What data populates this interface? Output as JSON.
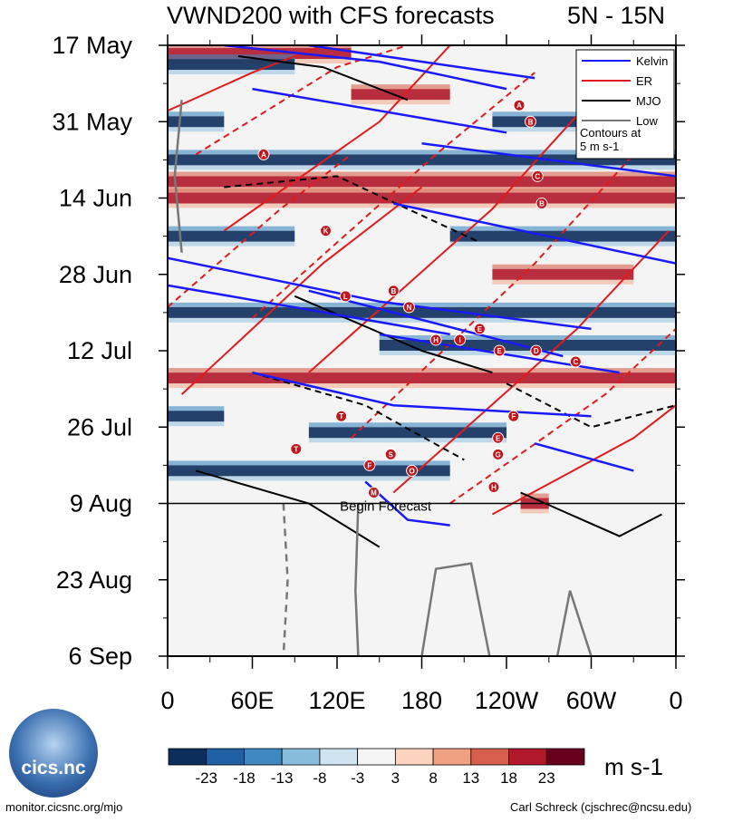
{
  "title_left": "VWND200 with CFS forecasts",
  "title_right": "5N - 15N",
  "chart_data": {
    "type": "heatmap",
    "title": "VWND200 with CFS forecasts",
    "region": "5N - 15N",
    "x_ticks": [
      "0",
      "60E",
      "120E",
      "180",
      "120W",
      "60W",
      "0"
    ],
    "x_range_deg": [
      0,
      360
    ],
    "y_ticks": [
      "17 May",
      "31 May",
      "14 Jun",
      "28 Jun",
      "12 Jul",
      "26 Jul",
      "9 Aug",
      "23 Aug",
      "6 Sep"
    ],
    "y_range_days": [
      0,
      112
    ],
    "forecast_start_label": "Begin Forecast",
    "forecast_start_day": 84,
    "legend": [
      {
        "name": "Kelvin",
        "color": "#1a1aff",
        "style": "solid"
      },
      {
        "name": "ER",
        "color": "#e31a1c",
        "style": "solid"
      },
      {
        "name": "MJO",
        "color": "#000000",
        "style": "solid"
      },
      {
        "name": "Low",
        "color": "#777777",
        "style": "solid"
      }
    ],
    "legend_note": [
      "Contours at",
      "5 m s-1"
    ],
    "colorbar": {
      "labels": [
        "-23",
        "-18",
        "-13",
        "-8",
        "-3",
        "3",
        "8",
        "13",
        "18",
        "23"
      ],
      "colors": [
        "#0c2e5c",
        "#1f5fa3",
        "#3e87c0",
        "#88bcdd",
        "#cfe3f1",
        "#f5f5f5",
        "#fcd3be",
        "#f0a182",
        "#d6604d",
        "#b2182b",
        "#67001f"
      ],
      "unit": "m s-1"
    },
    "bands": [
      {
        "day": 1.5,
        "sign": 1,
        "x0": 0,
        "x1": 130
      },
      {
        "day": 3.5,
        "sign": -1,
        "x0": 0,
        "x1": 90
      },
      {
        "day": 9,
        "sign": 1,
        "x0": 130,
        "x1": 200
      },
      {
        "day": 14,
        "sign": -1,
        "x0": 0,
        "x1": 40
      },
      {
        "day": 14,
        "sign": -1,
        "x0": 230,
        "x1": 300
      },
      {
        "day": 21,
        "sign": -1,
        "x0": 0,
        "x1": 360
      },
      {
        "day": 25,
        "sign": 1,
        "x0": 0,
        "x1": 360
      },
      {
        "day": 28,
        "sign": 1,
        "x0": 0,
        "x1": 360
      },
      {
        "day": 35,
        "sign": -1,
        "x0": 0,
        "x1": 90
      },
      {
        "day": 35,
        "sign": -1,
        "x0": 200,
        "x1": 360
      },
      {
        "day": 42,
        "sign": 1,
        "x0": 230,
        "x1": 330
      },
      {
        "day": 49,
        "sign": -1,
        "x0": 0,
        "x1": 360
      },
      {
        "day": 55,
        "sign": -1,
        "x0": 150,
        "x1": 360
      },
      {
        "day": 61,
        "sign": 1,
        "x0": 0,
        "x1": 360
      },
      {
        "day": 68,
        "sign": -1,
        "x0": 0,
        "x1": 40
      },
      {
        "day": 71,
        "sign": -1,
        "x0": 100,
        "x1": 240
      },
      {
        "day": 78,
        "sign": -1,
        "x0": 0,
        "x1": 200
      },
      {
        "day": 84,
        "sign": 1,
        "x0": 250,
        "x1": 270
      }
    ],
    "kelvin_lines": [
      [
        [
          40,
          0
        ],
        [
          150,
          3
        ],
        [
          240,
          8
        ]
      ],
      [
        [
          100,
          0
        ],
        [
          260,
          6
        ]
      ],
      [
        [
          60,
          8
        ],
        [
          240,
          16
        ]
      ],
      [
        [
          180,
          18
        ],
        [
          360,
          24
        ]
      ],
      [
        [
          0,
          39
        ],
        [
          150,
          47
        ],
        [
          300,
          52
        ]
      ],
      [
        [
          0,
          44
        ],
        [
          200,
          53
        ]
      ],
      [
        [
          160,
          29
        ],
        [
          360,
          40
        ]
      ],
      [
        [
          100,
          45
        ],
        [
          280,
          57
        ]
      ],
      [
        [
          60,
          60
        ],
        [
          160,
          66
        ],
        [
          300,
          68
        ]
      ],
      [
        [
          150,
          53
        ],
        [
          320,
          60
        ]
      ],
      [
        [
          260,
          73
        ],
        [
          330,
          78
        ]
      ],
      [
        [
          140,
          80
        ],
        [
          170,
          87
        ],
        [
          200,
          88
        ]
      ]
    ],
    "er_lines": [
      [
        [
          0,
          12
        ],
        [
          60,
          5
        ],
        [
          110,
          0
        ]
      ],
      [
        [
          20,
          20
        ],
        [
          120,
          4
        ],
        [
          170,
          0
        ]
      ],
      [
        [
          40,
          34
        ],
        [
          150,
          14
        ],
        [
          200,
          0
        ]
      ],
      [
        [
          60,
          50
        ],
        [
          190,
          20
        ],
        [
          260,
          5
        ]
      ],
      [
        [
          100,
          60
        ],
        [
          230,
          30
        ],
        [
          300,
          10
        ]
      ],
      [
        [
          130,
          72
        ],
        [
          260,
          40
        ],
        [
          330,
          20
        ]
      ],
      [
        [
          160,
          82
        ],
        [
          290,
          52
        ],
        [
          355,
          34
        ]
      ],
      [
        [
          200,
          84
        ],
        [
          310,
          64
        ],
        [
          360,
          52
        ]
      ],
      [
        [
          230,
          86
        ],
        [
          330,
          72
        ],
        [
          360,
          66
        ]
      ],
      [
        [
          0,
          48
        ],
        [
          80,
          30
        ],
        [
          130,
          20
        ]
      ],
      [
        [
          10,
          64
        ],
        [
          110,
          40
        ],
        [
          180,
          26
        ]
      ]
    ],
    "mjo_lines": [
      [
        [
          50,
          2
        ],
        [
          110,
          4
        ],
        [
          170,
          10
        ]
      ],
      [
        [
          40,
          26
        ],
        [
          120,
          24
        ],
        [
          220,
          36
        ]
      ],
      [
        [
          90,
          46
        ],
        [
          180,
          56
        ],
        [
          230,
          60
        ]
      ],
      [
        [
          60,
          60
        ],
        [
          140,
          66
        ],
        [
          210,
          76
        ]
      ],
      [
        [
          20,
          78
        ],
        [
          100,
          84
        ],
        [
          150,
          92
        ]
      ],
      [
        [
          240,
          62
        ],
        [
          300,
          70
        ],
        [
          360,
          66
        ]
      ],
      [
        [
          250,
          82
        ],
        [
          320,
          90
        ],
        [
          350,
          86
        ]
      ]
    ],
    "low_lines": [
      [
        [
          10,
          10
        ],
        [
          5,
          24
        ],
        [
          10,
          38
        ]
      ],
      [
        [
          82,
          84
        ],
        [
          85,
          98
        ],
        [
          82,
          112
        ]
      ],
      [
        [
          135,
          84
        ],
        [
          133,
          100
        ],
        [
          135,
          112
        ]
      ],
      [
        [
          180,
          112
        ],
        [
          190,
          96
        ],
        [
          215,
          95
        ],
        [
          228,
          112
        ]
      ],
      [
        [
          276,
          112
        ],
        [
          285,
          100
        ],
        [
          300,
          112
        ]
      ]
    ],
    "storm_labels": [
      {
        "label": "A",
        "lon": 68,
        "day": 20
      },
      {
        "label": "K",
        "lon": 112,
        "day": 34
      },
      {
        "label": "L",
        "lon": 126,
        "day": 46
      },
      {
        "label": "B",
        "lon": 160,
        "day": 45
      },
      {
        "label": "N",
        "lon": 171,
        "day": 48
      },
      {
        "label": "E",
        "lon": 221,
        "day": 52
      },
      {
        "label": "H",
        "lon": 190,
        "day": 54
      },
      {
        "label": "I",
        "lon": 207,
        "day": 54
      },
      {
        "label": "E",
        "lon": 235,
        "day": 56
      },
      {
        "label": "D",
        "lon": 261,
        "day": 56
      },
      {
        "label": "C",
        "lon": 289,
        "day": 58
      },
      {
        "label": "A",
        "lon": 249,
        "day": 11
      },
      {
        "label": "B",
        "lon": 257,
        "day": 14
      },
      {
        "label": "C",
        "lon": 262,
        "day": 24
      },
      {
        "label": "B",
        "lon": 265,
        "day": 29
      },
      {
        "label": "T",
        "lon": 123,
        "day": 68
      },
      {
        "label": "F",
        "lon": 245,
        "day": 68
      },
      {
        "label": "T",
        "lon": 91,
        "day": 74
      },
      {
        "label": "E",
        "lon": 234,
        "day": 72
      },
      {
        "label": "G",
        "lon": 234,
        "day": 75
      },
      {
        "label": "S",
        "lon": 158,
        "day": 75
      },
      {
        "label": "F",
        "lon": 143,
        "day": 77
      },
      {
        "label": "O",
        "lon": 173,
        "day": 78
      },
      {
        "label": "M",
        "lon": 146,
        "day": 82
      },
      {
        "label": "H",
        "lon": 231,
        "day": 81
      }
    ]
  },
  "footer_left": "monitor.cicsnc.org/mjo",
  "footer_right": "Carl Schreck (cjschrec@ncsu.edu)",
  "logo_text": "cics.nc"
}
